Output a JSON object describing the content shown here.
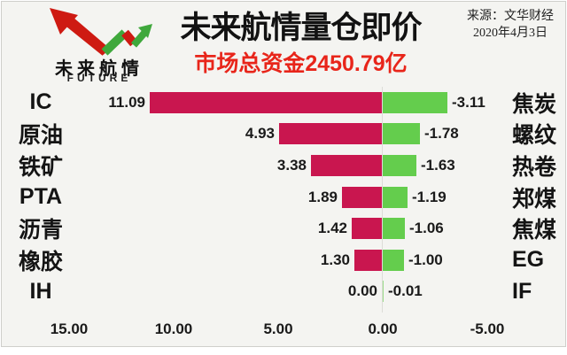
{
  "header": {
    "logo": {
      "brand_cn": "未来航情",
      "brand_en": "FUTURE",
      "red": "#ce1a12",
      "green": "#3fa83c"
    },
    "title": "未来航情量仓即价",
    "subtitle": "市场总资金2450.79亿",
    "subtitle_color": "#e8251a",
    "source_line1": "来源：文华财经",
    "source_line2": "2020年4月3日"
  },
  "chart_data": {
    "type": "bar",
    "subtype": "horizontal-diverging",
    "title": "未来航情量仓即价",
    "subtitle": "市场总资金2450.79亿",
    "left_categories": [
      "IC",
      "原油",
      "铁矿",
      "PTA",
      "沥青",
      "橡胶",
      "IH"
    ],
    "right_categories": [
      "焦炭",
      "螺纹",
      "热卷",
      "郑煤",
      "焦煤",
      "EG",
      "IF"
    ],
    "series": [
      {
        "name": "red-left-bars",
        "color": "#c9164f",
        "values": [
          11.09,
          4.93,
          3.38,
          1.89,
          1.42,
          1.3,
          0.0
        ]
      },
      {
        "name": "green-right-bars",
        "color": "#64cd4d",
        "values": [
          -3.11,
          -1.78,
          -1.63,
          -1.19,
          -1.06,
          -1.0,
          -0.01
        ]
      }
    ],
    "x_ticks": [
      {
        "label": "15.00",
        "value": 15
      },
      {
        "label": "10.00",
        "value": 10
      },
      {
        "label": "5.00",
        "value": 5
      },
      {
        "label": "0.00",
        "value": 0
      },
      {
        "label": "-5.00",
        "value": -5
      }
    ],
    "xlim": [
      16.5,
      -7
    ],
    "value_label_decimals": 2,
    "grid": "zero-line-only",
    "legend": "none"
  }
}
